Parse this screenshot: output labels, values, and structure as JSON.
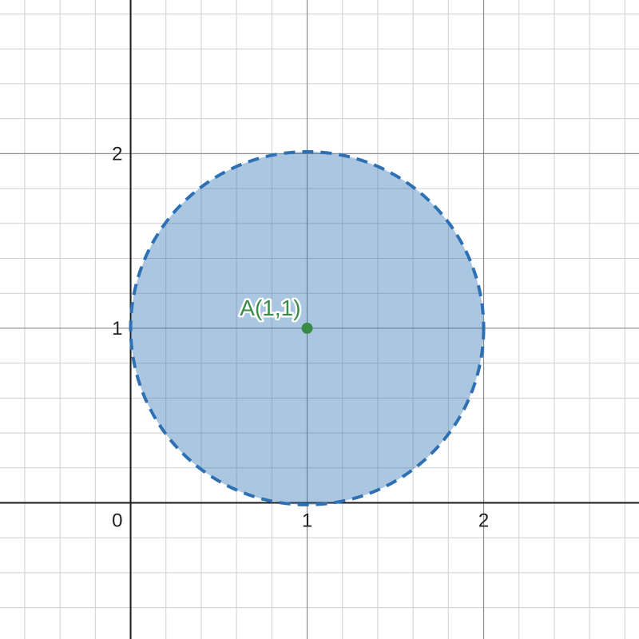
{
  "chart_data": {
    "type": "scatter",
    "xlim": [
      -0.74,
      2.88
    ],
    "ylim": [
      -0.78,
      2.88
    ],
    "grid": true,
    "minor_step": 0.2,
    "major_step": 1,
    "x_tick_labels": [
      {
        "value": 0,
        "label": "0"
      },
      {
        "value": 1,
        "label": "1"
      },
      {
        "value": 2,
        "label": "2"
      }
    ],
    "y_tick_labels": [
      {
        "value": 1,
        "label": "1"
      },
      {
        "value": 2,
        "label": "2"
      }
    ],
    "circle": {
      "center": [
        1,
        1
      ],
      "radius": 1,
      "stroke_color": "#2d70b3",
      "fill_color": "#2d70b3",
      "fill_opacity": 0.4,
      "dashed": true
    },
    "points": [
      {
        "x": 1,
        "y": 1,
        "label": "A(1,1)",
        "color": "#388c46"
      }
    ]
  }
}
